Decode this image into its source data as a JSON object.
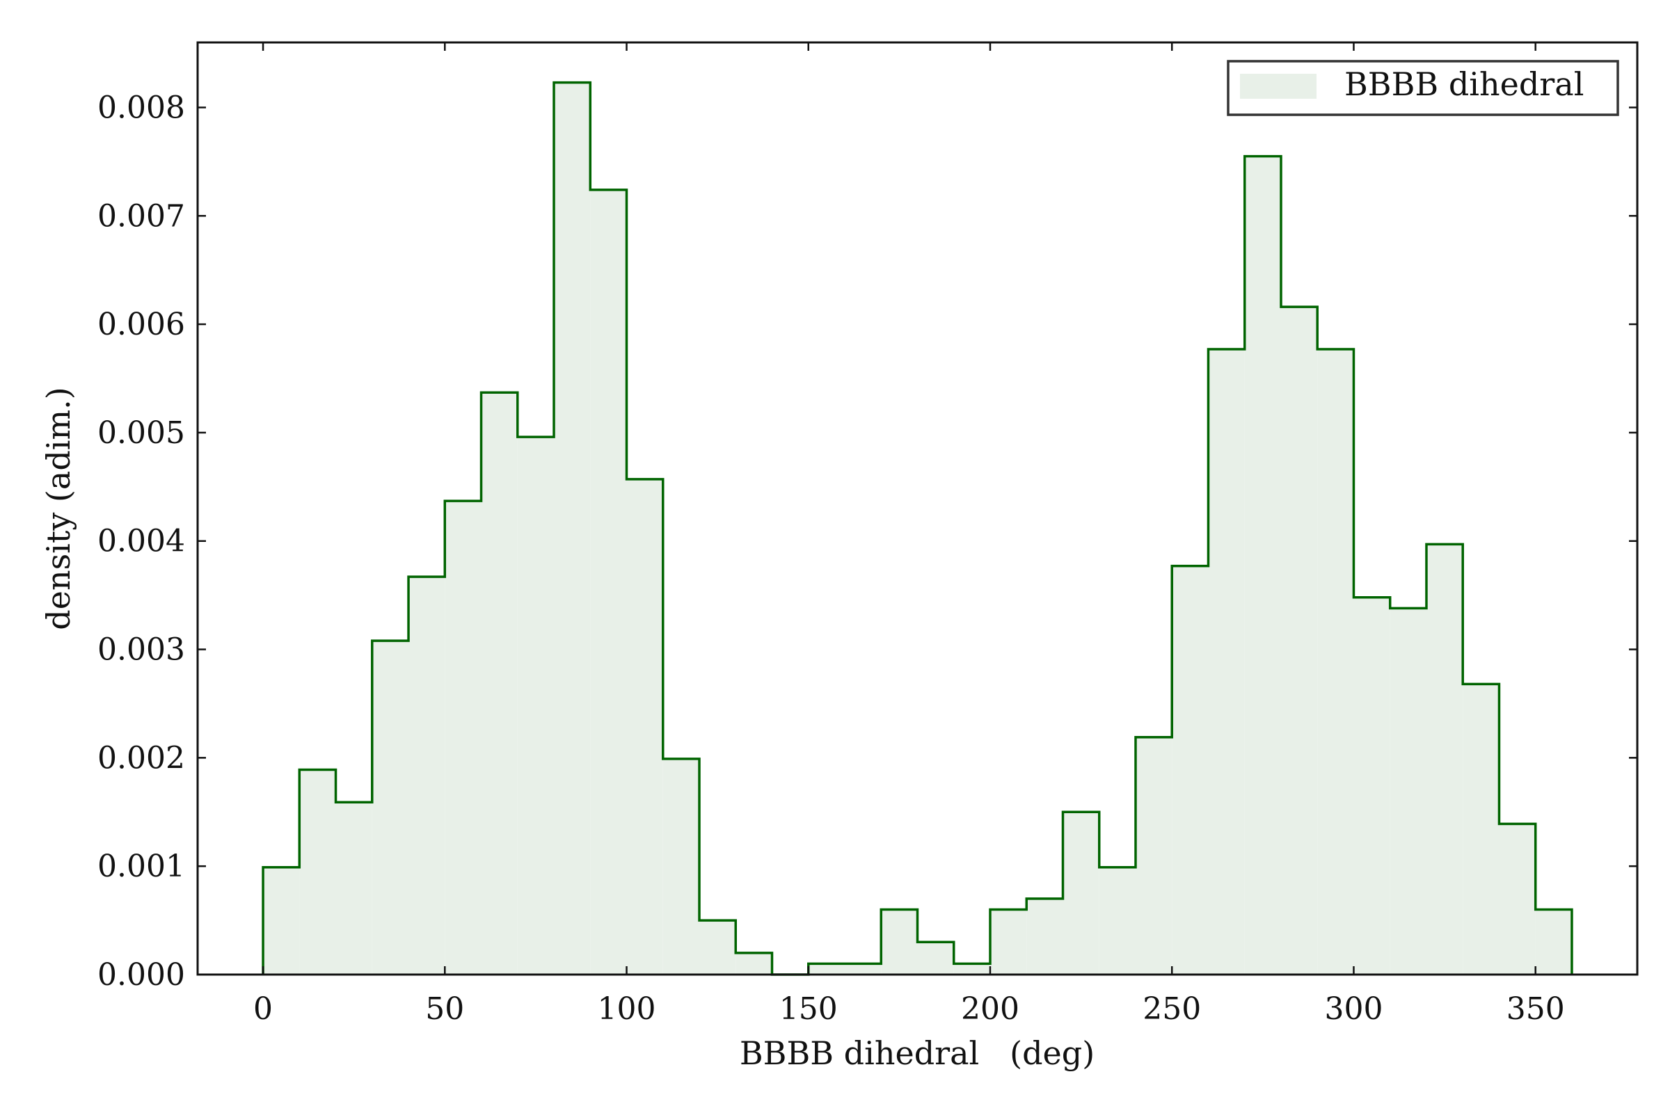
{
  "chart_data": {
    "type": "histogram",
    "xlabel": "BBBB dihedral   (deg)",
    "ylabel": "density (adim.)",
    "xlim": [
      -18,
      378
    ],
    "ylim": [
      0,
      0.0086
    ],
    "xticks": [
      0,
      50,
      100,
      150,
      200,
      250,
      300,
      350
    ],
    "xtick_labels": [
      "0",
      "50",
      "100",
      "150",
      "200",
      "250",
      "300",
      "350"
    ],
    "yticks": [
      0,
      0.001,
      0.002,
      0.003,
      0.004,
      0.005,
      0.006,
      0.007,
      0.008
    ],
    "ytick_labels": [
      "0.000",
      "0.001",
      "0.002",
      "0.003",
      "0.004",
      "0.005",
      "0.006",
      "0.007",
      "0.008"
    ],
    "bin_edges": [
      0,
      10,
      20,
      30,
      40,
      50,
      60,
      70,
      80,
      90,
      100,
      110,
      120,
      130,
      140,
      150,
      160,
      170,
      180,
      190,
      200,
      210,
      220,
      230,
      240,
      250,
      260,
      270,
      280,
      290,
      300,
      310,
      320,
      330,
      340,
      350,
      360
    ],
    "values": [
      0.00099,
      0.00189,
      0.00159,
      0.00308,
      0.00367,
      0.00437,
      0.00537,
      0.00496,
      0.00823,
      0.00724,
      0.00457,
      0.00199,
      0.0005,
      0.0002,
      0.0,
      0.0001,
      0.0001,
      0.0006,
      0.0003,
      0.0001,
      0.0006,
      0.0007,
      0.0015,
      0.00099,
      0.00219,
      0.00377,
      0.00577,
      0.00755,
      0.00616,
      0.00577,
      0.00348,
      0.00338,
      0.00397,
      0.00268,
      0.00139,
      0.0006
    ],
    "legend": {
      "entries": [
        "BBBB dihedral"
      ],
      "location": "upper right"
    },
    "colors": {
      "edge": "#006400",
      "fill": "#e8f0e8",
      "axes": "#111111"
    },
    "grid": false
  }
}
